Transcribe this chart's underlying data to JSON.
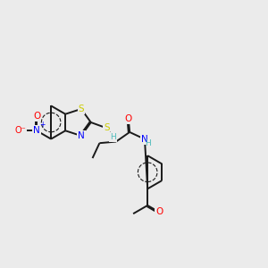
{
  "bg_color": "#ebebeb",
  "bond_color": "#1a1a1a",
  "colors": {
    "C": "#1a1a1a",
    "N": "#0000ff",
    "O": "#ff0000",
    "S": "#cccc00",
    "H": "#4dbbbb"
  },
  "lw": 1.4,
  "fontsize": 7.5
}
